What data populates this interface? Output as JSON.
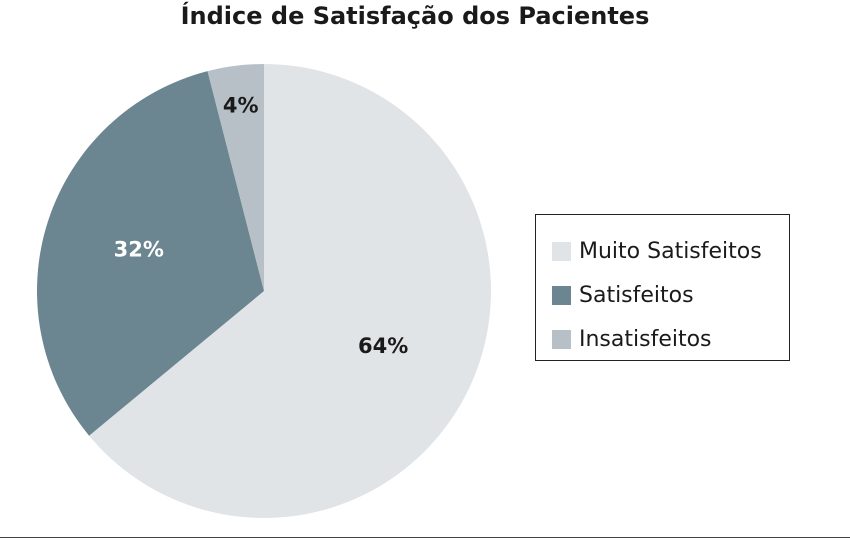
{
  "chart_data": {
    "type": "pie",
    "title": "Índice de Satisfação dos Pacientes",
    "slices": [
      {
        "label": "Muito Satisfeitos",
        "value": 64,
        "display": "64%",
        "color": "#e1e4e7",
        "label_color": "#1a1a1a"
      },
      {
        "label": "Satisfeitos",
        "value": 32,
        "display": "32%",
        "color": "#6b8690",
        "label_color": "#ffffff"
      },
      {
        "label": "Insatisfeitos",
        "value": 4,
        "display": "4%",
        "color": "#b8c0c7",
        "label_color": "#1a1a1a"
      }
    ],
    "legend_position": "right"
  }
}
